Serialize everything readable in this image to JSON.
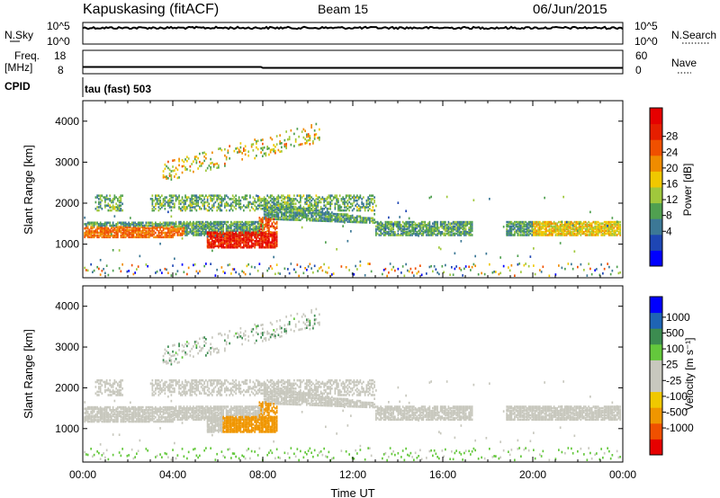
{
  "header": {
    "station": "Kapuskasing (fitACF)",
    "beam": "Beam 15",
    "date": "06/Jun/2015"
  },
  "nsky_panel": {
    "left_label": "N.Sky",
    "right_label": "N.Search",
    "ticks_left": [
      "10^5",
      "10^0"
    ],
    "ticks_right": [
      "10^5",
      "10^0"
    ]
  },
  "freq_panel": {
    "left_label_line1": "Freq.",
    "left_label_line2": "[MHz]",
    "right_label": "Nave",
    "ticks_left": [
      "18",
      "8"
    ],
    "ticks_right": [
      "60",
      "0"
    ]
  },
  "cpid": {
    "label": "CPID",
    "value": "tau (fast) 503"
  },
  "colors": {
    "power_scale": [
      "#0000ff",
      "#1e46b4",
      "#3c7896",
      "#50a050",
      "#a0c83c",
      "#f0c800",
      "#f08c00",
      "#f05000",
      "#e61e00",
      "#e60000"
    ],
    "velocity_scale": [
      "#e60000",
      "#f05000",
      "#f09600",
      "#f0c800",
      "#c8c8be",
      "#c8c8be",
      "#64c83c",
      "#3c8c50",
      "#1e64b4",
      "#0000ff"
    ],
    "ground_scatter": "#c8c8be"
  },
  "chart_data": [
    {
      "type": "heatmap",
      "title": "Power",
      "ylabel": "Slant Range [km]",
      "y_ticks": [
        1000,
        2000,
        3000,
        4000
      ],
      "ylim": [
        180,
        4500
      ],
      "xlim": [
        0,
        24
      ],
      "colorbar_label": "Power [dB]",
      "colorbar_ticks": [
        "28",
        "24",
        "20",
        "16",
        "12",
        "8",
        "4"
      ],
      "features": [
        {
          "name": "main band",
          "start": 0.0,
          "end": 24.0,
          "range_start": 1250,
          "range_end": 1650,
          "value": 12
        },
        {
          "name": "strong echoes",
          "start": 5.5,
          "end": 8.6,
          "range_start": 950,
          "range_end": 1300,
          "value": 28
        },
        {
          "name": "far echoes",
          "start": 3.5,
          "end": 10.5,
          "range_start": 2600,
          "range_end": 4000,
          "value": 10
        }
      ]
    },
    {
      "type": "heatmap",
      "title": "Velocity",
      "ylabel": "Slant Range [km]",
      "xlabel": "Time UT",
      "x_ticks": [
        "00:00",
        "04:00",
        "08:00",
        "12:00",
        "16:00",
        "20:00",
        "00:00"
      ],
      "y_ticks": [
        1000,
        2000,
        3000,
        4000
      ],
      "ylim": [
        180,
        4500
      ],
      "xlim": [
        0,
        24
      ],
      "colorbar_label": "Velocity [m s⁻¹]",
      "colorbar_ticks": [
        "1000",
        "500",
        "100",
        "25",
        "-25",
        "-100",
        "-500",
        "-1000"
      ],
      "features": [
        {
          "name": "ground scatter band",
          "start": 0.0,
          "end": 24.0,
          "range_start": 1250,
          "range_end": 1600,
          "value": 0
        },
        {
          "name": "negative velocity patch",
          "start": 6.2,
          "end": 8.6,
          "range_start": 950,
          "range_end": 1700,
          "value": -150
        }
      ]
    }
  ]
}
